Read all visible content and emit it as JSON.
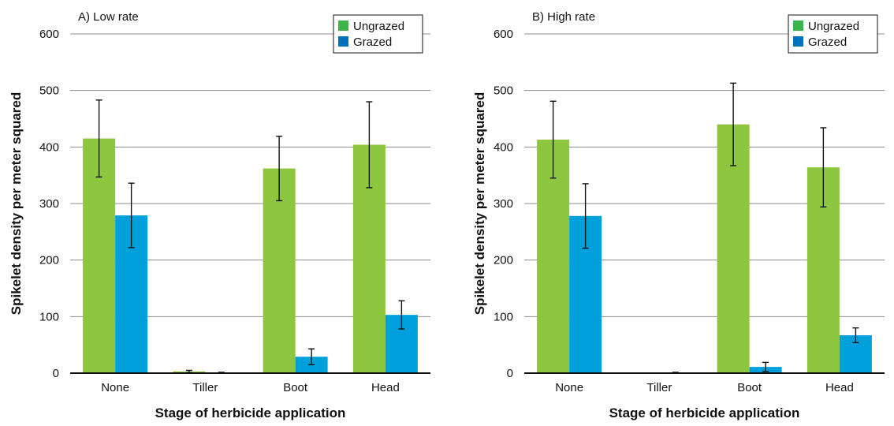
{
  "chart_data": [
    {
      "type": "bar",
      "panel_label": "A) Low rate",
      "xlabel": "Stage of herbicide application",
      "ylabel": "Spikelet density per meter squared",
      "categories": [
        "None",
        "Tiller",
        "Boot",
        "Head"
      ],
      "ylim": [
        0,
        600
      ],
      "yticks": [
        0,
        100,
        200,
        300,
        400,
        500,
        600
      ],
      "grid": true,
      "legend_position": "top-right",
      "series": [
        {
          "name": "Ungrazed",
          "color": "#8dc63f",
          "values": [
            415,
            3,
            362,
            404
          ],
          "errors": [
            68,
            2,
            57,
            76
          ]
        },
        {
          "name": "Grazed",
          "color": "#00a0dc",
          "values": [
            279,
            1,
            29,
            103
          ],
          "errors": [
            57,
            0.5,
            14,
            25
          ]
        }
      ]
    },
    {
      "type": "bar",
      "panel_label": "B) High rate",
      "xlabel": "Stage of herbicide application",
      "ylabel": "Spikelet density per meter squared",
      "categories": [
        "None",
        "Tiller",
        "Boot",
        "Head"
      ],
      "ylim": [
        0,
        600
      ],
      "yticks": [
        0,
        100,
        200,
        300,
        400,
        500,
        600
      ],
      "grid": true,
      "legend_position": "top-right",
      "series": [
        {
          "name": "Ungrazed",
          "color": "#8dc63f",
          "values": [
            413,
            0,
            440,
            364
          ],
          "errors": [
            68,
            0,
            73,
            70
          ]
        },
        {
          "name": "Grazed",
          "color": "#00a0dc",
          "values": [
            278,
            1,
            11,
            67
          ],
          "errors": [
            57,
            0.5,
            8,
            13
          ]
        }
      ]
    }
  ],
  "legend_box_colors": [
    "#39b54a",
    "#0072bc"
  ]
}
